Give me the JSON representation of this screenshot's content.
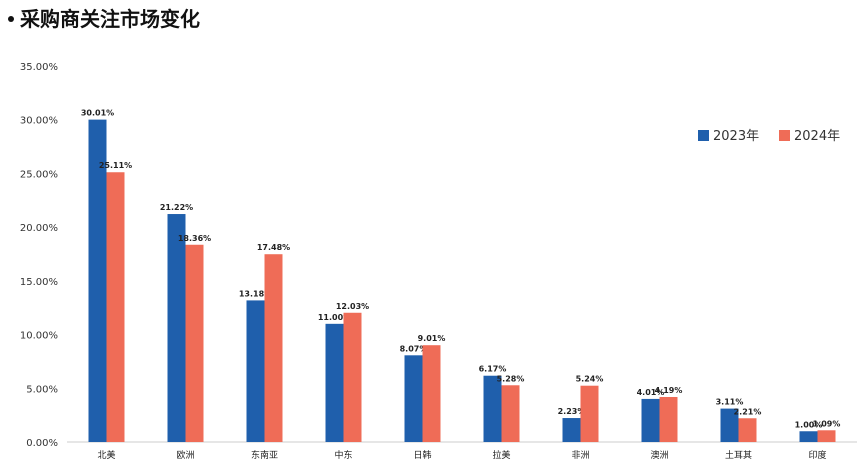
{
  "chart_data": {
    "type": "bar",
    "title": "采购商关注市场变化",
    "categories": [
      "北美",
      "欧洲",
      "东南亚",
      "中东",
      "日韩",
      "拉美",
      "非洲",
      "澳洲",
      "土耳其",
      "印度"
    ],
    "series": [
      {
        "name": "2023年",
        "color": "#1f5fac",
        "values": [
          30.01,
          21.22,
          13.18,
          11.0,
          8.07,
          6.17,
          2.23,
          4.01,
          3.11,
          1.0
        ],
        "labels": [
          "30.01%",
          "21.22%",
          "13.18%",
          "11.00%",
          "8.07%",
          "6.17%",
          "2.23%",
          "4.01%",
          "3.11%",
          "1.00%"
        ]
      },
      {
        "name": "2024年",
        "color": "#ef6c57",
        "values": [
          25.11,
          18.36,
          17.48,
          12.03,
          9.01,
          5.28,
          5.24,
          4.19,
          2.21,
          1.09
        ],
        "labels": [
          "25.11%",
          "18.36%",
          "17.48%",
          "12.03%",
          "9.01%",
          "5.28%",
          "5.24%",
          "4.19%",
          "2.21%",
          "1.09%"
        ]
      }
    ],
    "ylim": [
      0,
      35
    ],
    "yticks": [
      0,
      5,
      10,
      15,
      20,
      25,
      30,
      35
    ],
    "ytick_labels": [
      "0.00%",
      "5.00%",
      "10.00%",
      "15.00%",
      "20.00%",
      "25.00%",
      "30.00%",
      "35.00%"
    ],
    "xlabel": "",
    "ylabel": "",
    "grid": false,
    "legend_position": "top-right"
  }
}
